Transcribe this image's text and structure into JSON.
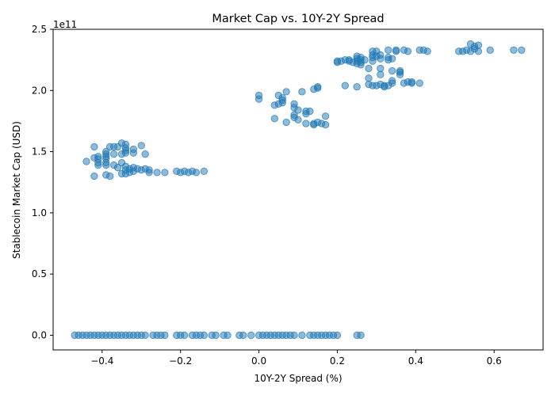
{
  "chart_data": {
    "type": "scatter",
    "title": "Market Cap vs. 10Y-2Y Spread",
    "xlabel": "10Y-2Y Spread (%)",
    "ylabel": "Stablecoin Market Cap (USD)",
    "y_offset_label": "1e11",
    "xlim": [
      -0.525,
      0.725
    ],
    "ylim": [
      -0.12,
      2.5
    ],
    "x_ticks": [
      -0.4,
      -0.2,
      0.0,
      0.2,
      0.4,
      0.6
    ],
    "x_tick_labels": [
      "−0.4",
      "−0.2",
      "0.0",
      "0.2",
      "0.4",
      "0.6"
    ],
    "y_ticks": [
      0.0,
      0.5,
      1.0,
      1.5,
      2.0,
      2.5
    ],
    "y_tick_labels": [
      "0.0",
      "0.5",
      "1.0",
      "1.5",
      "2.0",
      "2.5"
    ],
    "grid": false,
    "legend": "none",
    "marker_color": "#1f77b4",
    "marker_alpha": 0.5,
    "series": [
      {
        "points": [
          [
            -0.47,
            0.0
          ],
          [
            -0.46,
            0.0
          ],
          [
            -0.45,
            0.0
          ],
          [
            -0.44,
            0.0
          ],
          [
            -0.43,
            0.0
          ],
          [
            -0.42,
            0.0
          ],
          [
            -0.41,
            0.0
          ],
          [
            -0.4,
            0.0
          ],
          [
            -0.39,
            0.0
          ],
          [
            -0.38,
            0.0
          ],
          [
            -0.37,
            0.0
          ],
          [
            -0.36,
            0.0
          ],
          [
            -0.35,
            0.0
          ],
          [
            -0.34,
            0.0
          ],
          [
            -0.33,
            0.0
          ],
          [
            -0.32,
            0.0
          ],
          [
            -0.31,
            0.0
          ],
          [
            -0.3,
            0.0
          ],
          [
            -0.29,
            0.0
          ],
          [
            -0.27,
            0.0
          ],
          [
            -0.26,
            0.0
          ],
          [
            -0.25,
            0.0
          ],
          [
            -0.24,
            0.0
          ],
          [
            -0.21,
            0.0
          ],
          [
            -0.2,
            0.0
          ],
          [
            -0.19,
            0.0
          ],
          [
            -0.17,
            0.0
          ],
          [
            -0.16,
            0.0
          ],
          [
            -0.15,
            0.0
          ],
          [
            -0.14,
            0.0
          ],
          [
            -0.12,
            0.0
          ],
          [
            -0.11,
            0.0
          ],
          [
            -0.09,
            0.0
          ],
          [
            -0.08,
            0.0
          ],
          [
            -0.05,
            0.0
          ],
          [
            -0.04,
            0.0
          ],
          [
            -0.02,
            0.0
          ],
          [
            0.0,
            0.0
          ],
          [
            0.01,
            0.0
          ],
          [
            0.02,
            0.0
          ],
          [
            0.03,
            0.0
          ],
          [
            0.04,
            0.0
          ],
          [
            0.05,
            0.0
          ],
          [
            0.06,
            0.0
          ],
          [
            0.07,
            0.0
          ],
          [
            0.08,
            0.0
          ],
          [
            0.09,
            0.0
          ],
          [
            0.11,
            0.0
          ],
          [
            0.13,
            0.0
          ],
          [
            0.14,
            0.0
          ],
          [
            0.15,
            0.0
          ],
          [
            0.16,
            0.0
          ],
          [
            0.17,
            0.0
          ],
          [
            0.18,
            0.0
          ],
          [
            0.19,
            0.0
          ],
          [
            0.2,
            0.0
          ],
          [
            0.25,
            0.0
          ],
          [
            0.26,
            0.0
          ],
          [
            -0.44,
            1.42
          ],
          [
            -0.42,
            1.54
          ],
          [
            -0.42,
            1.45
          ],
          [
            -0.41,
            1.46
          ],
          [
            -0.41,
            1.44
          ],
          [
            -0.41,
            1.41
          ],
          [
            -0.41,
            1.39
          ],
          [
            -0.39,
            1.5
          ],
          [
            -0.39,
            1.48
          ],
          [
            -0.39,
            1.46
          ],
          [
            -0.39,
            1.44
          ],
          [
            -0.39,
            1.41
          ],
          [
            -0.39,
            1.39
          ],
          [
            -0.38,
            1.54
          ],
          [
            -0.37,
            1.54
          ],
          [
            -0.37,
            1.48
          ],
          [
            -0.37,
            1.39
          ],
          [
            -0.36,
            1.37
          ],
          [
            -0.36,
            1.54
          ],
          [
            -0.35,
            1.57
          ],
          [
            -0.35,
            1.48
          ],
          [
            -0.35,
            1.41
          ],
          [
            -0.34,
            1.56
          ],
          [
            -0.34,
            1.53
          ],
          [
            -0.34,
            1.51
          ],
          [
            -0.34,
            1.49
          ],
          [
            -0.34,
            1.38
          ],
          [
            -0.32,
            1.52
          ],
          [
            -0.32,
            1.49
          ],
          [
            -0.3,
            1.55
          ],
          [
            -0.29,
            1.48
          ],
          [
            -0.42,
            1.3
          ],
          [
            -0.39,
            1.31
          ],
          [
            -0.38,
            1.3
          ],
          [
            -0.35,
            1.32
          ],
          [
            -0.34,
            1.32
          ],
          [
            -0.34,
            1.35
          ],
          [
            -0.33,
            1.33
          ],
          [
            -0.33,
            1.36
          ],
          [
            -0.32,
            1.37
          ],
          [
            -0.32,
            1.34
          ],
          [
            -0.31,
            1.36
          ],
          [
            -0.3,
            1.35
          ],
          [
            -0.29,
            1.36
          ],
          [
            -0.28,
            1.35
          ],
          [
            -0.28,
            1.33
          ],
          [
            -0.26,
            1.33
          ],
          [
            -0.24,
            1.33
          ],
          [
            -0.21,
            1.34
          ],
          [
            -0.2,
            1.33
          ],
          [
            -0.19,
            1.34
          ],
          [
            -0.18,
            1.33
          ],
          [
            -0.17,
            1.34
          ],
          [
            -0.16,
            1.33
          ],
          [
            -0.14,
            1.34
          ],
          [
            -0.0,
            1.96
          ],
          [
            0.0,
            1.93
          ],
          [
            0.04,
            1.88
          ],
          [
            0.04,
            1.77
          ],
          [
            0.05,
            1.96
          ],
          [
            0.05,
            1.89
          ],
          [
            0.06,
            1.94
          ],
          [
            0.06,
            1.92
          ],
          [
            0.06,
            1.9
          ],
          [
            0.07,
            1.99
          ],
          [
            0.07,
            1.74
          ],
          [
            0.09,
            1.89
          ],
          [
            0.09,
            1.86
          ],
          [
            0.09,
            1.8
          ],
          [
            0.09,
            1.78
          ],
          [
            0.1,
            1.84
          ],
          [
            0.1,
            1.76
          ],
          [
            0.11,
            1.99
          ],
          [
            0.12,
            1.83
          ],
          [
            0.12,
            1.81
          ],
          [
            0.12,
            1.73
          ],
          [
            0.13,
            1.83
          ],
          [
            0.14,
            1.73
          ],
          [
            0.14,
            1.72
          ],
          [
            0.14,
            2.01
          ],
          [
            0.15,
            2.03
          ],
          [
            0.15,
            2.02
          ],
          [
            0.15,
            1.74
          ],
          [
            0.16,
            1.73
          ],
          [
            0.17,
            1.79
          ],
          [
            0.17,
            1.72
          ],
          [
            0.2,
            2.23
          ],
          [
            0.2,
            2.24
          ],
          [
            0.21,
            2.24
          ],
          [
            0.22,
            2.25
          ],
          [
            0.22,
            2.04
          ],
          [
            0.23,
            2.25
          ],
          [
            0.23,
            2.24
          ],
          [
            0.24,
            2.23
          ],
          [
            0.25,
            2.28
          ],
          [
            0.25,
            2.26
          ],
          [
            0.25,
            2.24
          ],
          [
            0.25,
            2.22
          ],
          [
            0.25,
            2.03
          ],
          [
            0.26,
            2.27
          ],
          [
            0.26,
            2.25
          ],
          [
            0.26,
            2.23
          ],
          [
            0.26,
            2.21
          ],
          [
            0.27,
            2.25
          ],
          [
            0.28,
            2.18
          ],
          [
            0.28,
            2.1
          ],
          [
            0.28,
            2.05
          ],
          [
            0.29,
            2.32
          ],
          [
            0.29,
            2.29
          ],
          [
            0.29,
            2.27
          ],
          [
            0.29,
            2.24
          ],
          [
            0.29,
            2.04
          ],
          [
            0.3,
            2.32
          ],
          [
            0.3,
            2.28
          ],
          [
            0.3,
            2.04
          ],
          [
            0.31,
            2.29
          ],
          [
            0.31,
            2.26
          ],
          [
            0.31,
            2.18
          ],
          [
            0.31,
            2.13
          ],
          [
            0.31,
            2.05
          ],
          [
            0.32,
            2.04
          ],
          [
            0.32,
            2.03
          ],
          [
            0.33,
            2.33
          ],
          [
            0.33,
            2.27
          ],
          [
            0.33,
            2.25
          ],
          [
            0.33,
            2.04
          ],
          [
            0.34,
            2.26
          ],
          [
            0.34,
            2.16
          ],
          [
            0.34,
            2.08
          ],
          [
            0.34,
            2.06
          ],
          [
            0.35,
            2.33
          ],
          [
            0.35,
            2.32
          ],
          [
            0.36,
            2.16
          ],
          [
            0.36,
            2.15
          ],
          [
            0.36,
            2.13
          ],
          [
            0.37,
            2.33
          ],
          [
            0.37,
            2.06
          ],
          [
            0.38,
            2.32
          ],
          [
            0.38,
            2.07
          ],
          [
            0.39,
            2.07
          ],
          [
            0.39,
            2.06
          ],
          [
            0.41,
            2.33
          ],
          [
            0.41,
            2.06
          ],
          [
            0.42,
            2.33
          ],
          [
            0.43,
            2.32
          ],
          [
            0.51,
            2.32
          ],
          [
            0.52,
            2.32
          ],
          [
            0.53,
            2.33
          ],
          [
            0.54,
            2.38
          ],
          [
            0.54,
            2.32
          ],
          [
            0.55,
            2.36
          ],
          [
            0.55,
            2.34
          ],
          [
            0.56,
            2.37
          ],
          [
            0.56,
            2.32
          ],
          [
            0.59,
            2.33
          ],
          [
            0.65,
            2.33
          ],
          [
            0.67,
            2.33
          ]
        ]
      }
    ]
  }
}
